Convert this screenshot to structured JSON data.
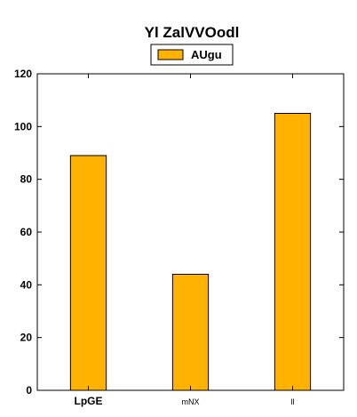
{
  "chart_data": {
    "type": "bar",
    "title": "Yl ZalVVOodl",
    "categories": [
      "LpGE",
      "mNX",
      "ll"
    ],
    "series": [
      {
        "name": "AUgu",
        "values": [
          89,
          44,
          105
        ]
      }
    ],
    "xlabel": "",
    "ylabel": "",
    "ylim": [
      0,
      120
    ],
    "yticks": [
      0,
      20,
      40,
      60,
      80,
      100,
      120
    ],
    "grid": false,
    "legend_position": "top-center",
    "colors": {
      "bar_fill": "#ffb300",
      "bar_edge": "#000000"
    }
  }
}
